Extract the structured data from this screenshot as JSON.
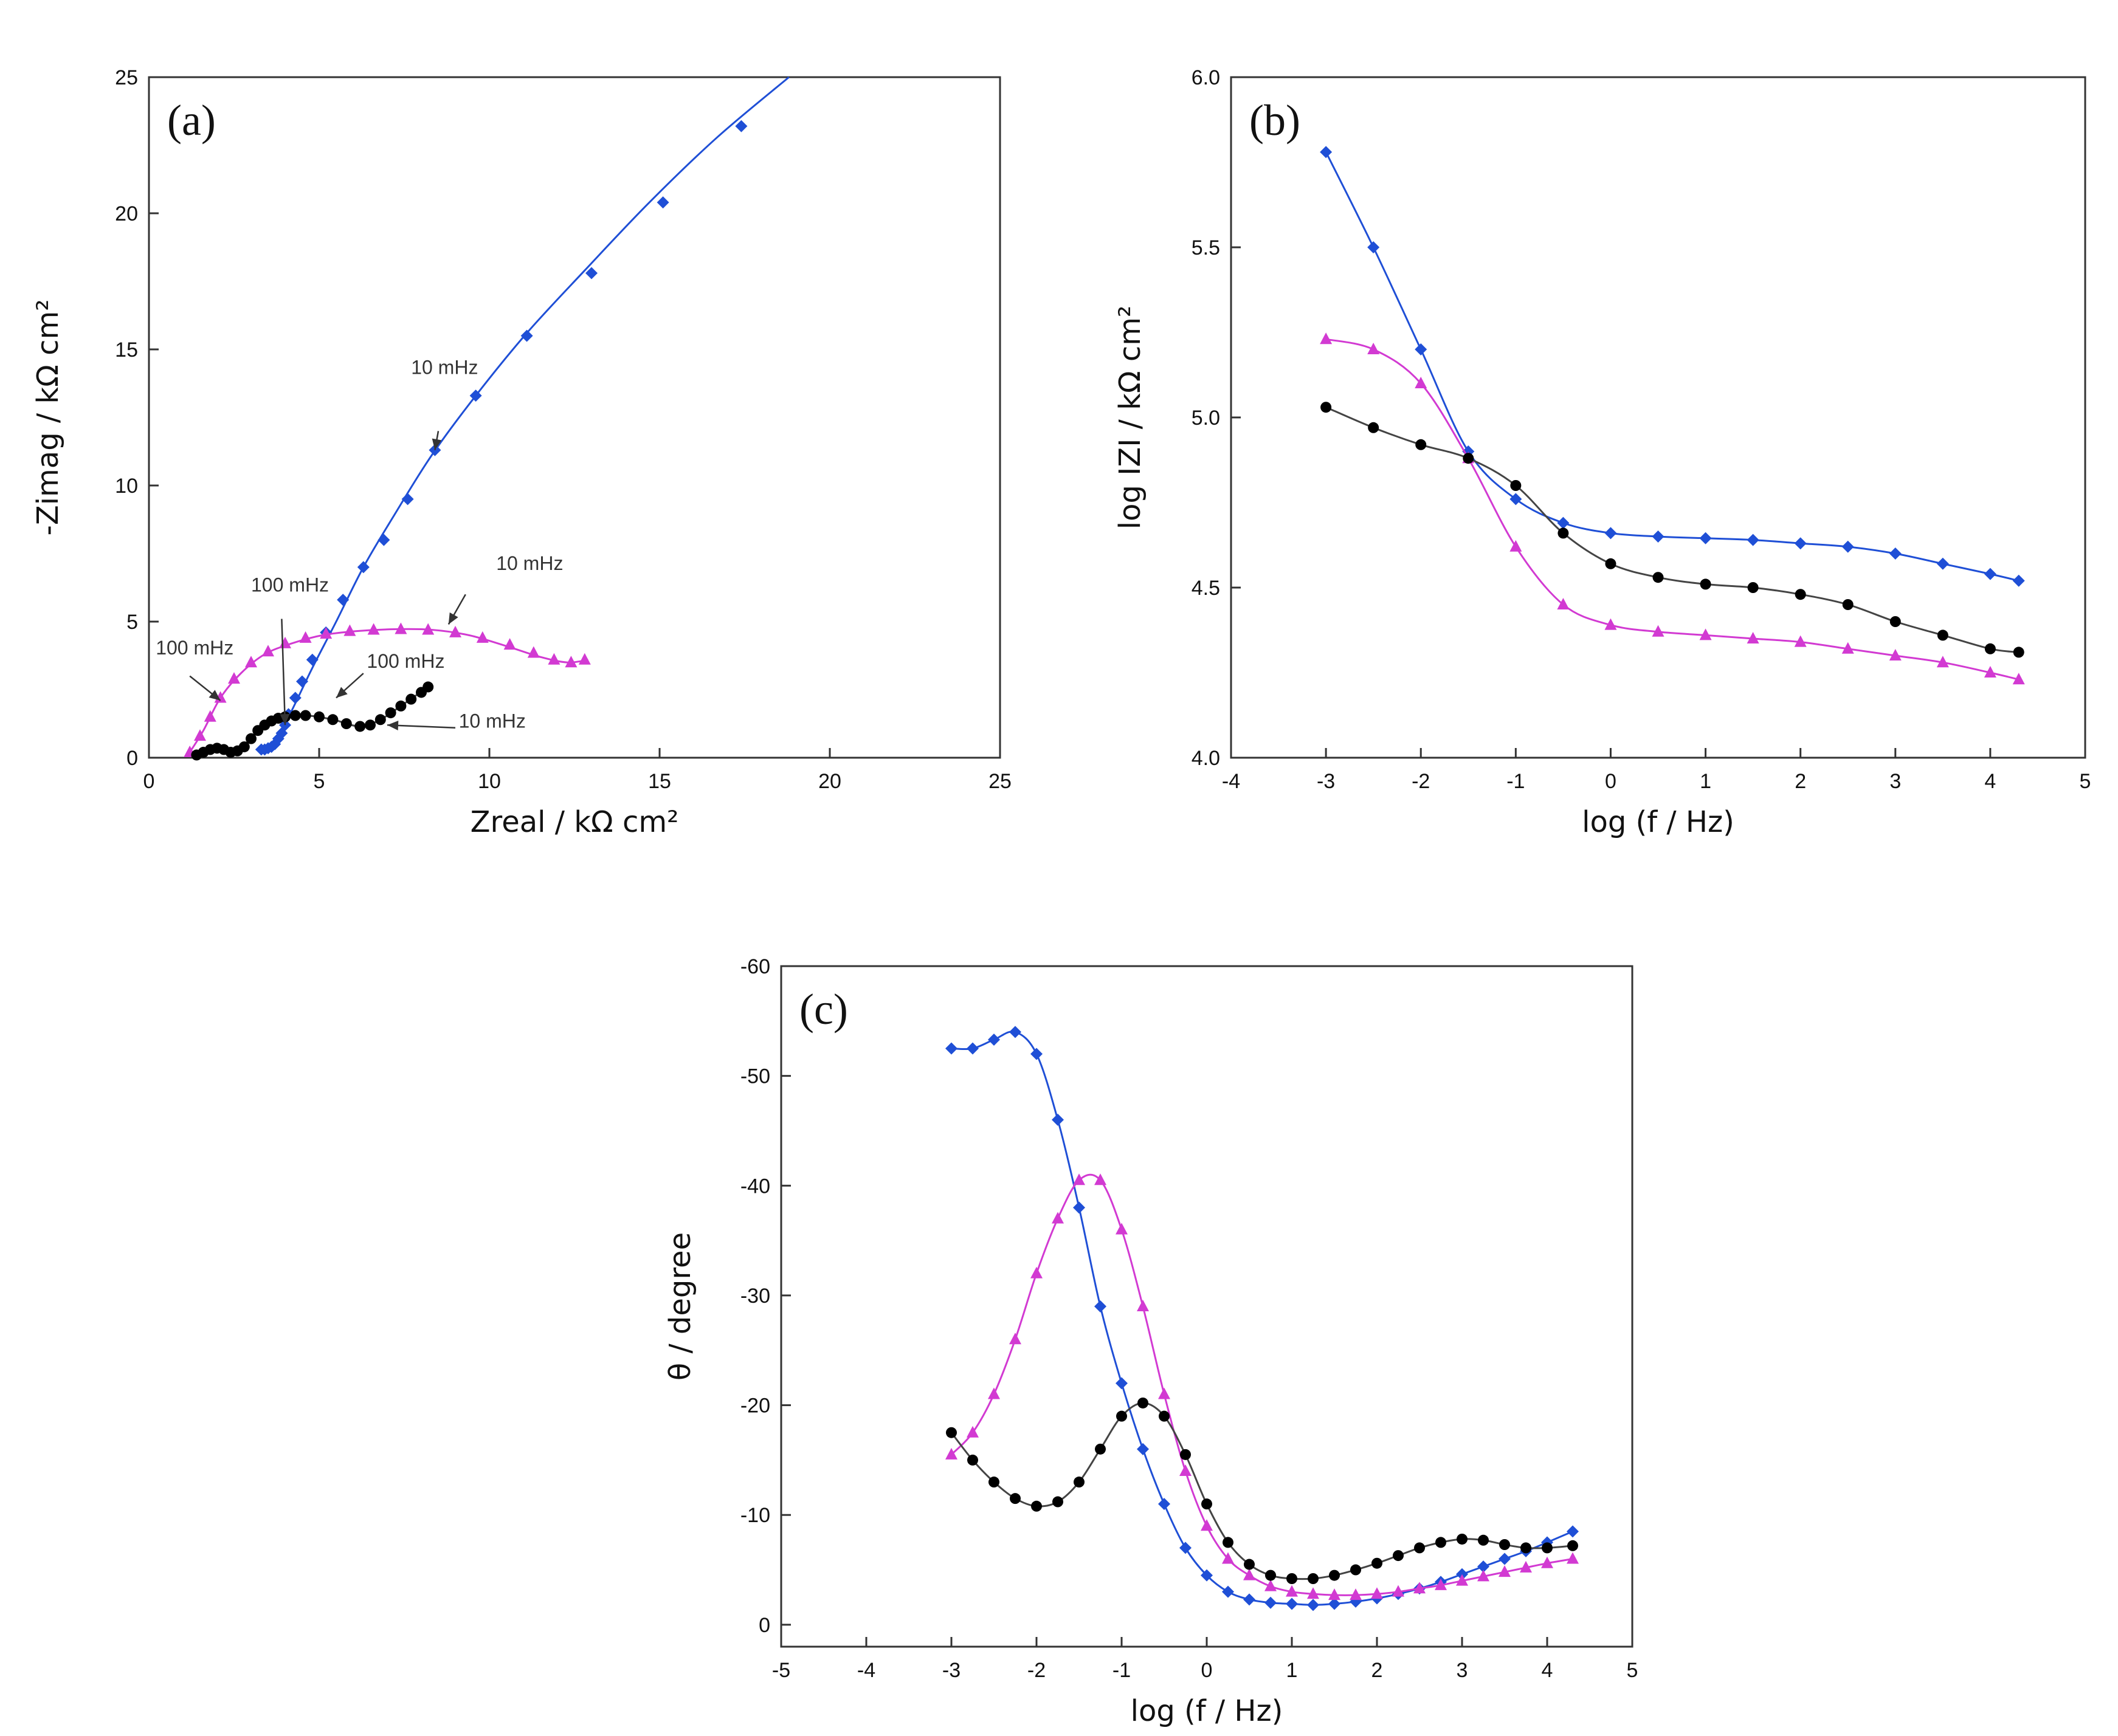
{
  "chart_data": [
    {
      "panel": "(a)",
      "type": "scatter",
      "xlabel": "Zreal / kΩ cm²",
      "ylabel": "-Zimag / kΩ cm²",
      "xlim": [
        0,
        25
      ],
      "ylim": [
        0,
        25
      ],
      "xticks": [
        "0",
        "5",
        "10",
        "15",
        "20",
        "25"
      ],
      "yticks": [
        "0",
        "5",
        "10",
        "15",
        "20",
        "25"
      ],
      "grid": false,
      "series": [
        {
          "color": "#1f4fd6",
          "marker": "diamond",
          "x": [
            3.3,
            3.4,
            3.5,
            3.6,
            3.7,
            3.8,
            3.9,
            4.0,
            4.1,
            4.3,
            4.5,
            4.8,
            5.2,
            5.7,
            6.3,
            6.9,
            7.6,
            8.4,
            9.6,
            11.1,
            13.0,
            15.1,
            17.4
          ],
          "y": [
            0.3,
            0.3,
            0.35,
            0.4,
            0.5,
            0.7,
            0.9,
            1.2,
            1.6,
            2.2,
            2.8,
            3.6,
            4.6,
            5.8,
            7.0,
            8.0,
            9.5,
            11.3,
            13.3,
            15.5,
            17.8,
            20.4,
            23.2
          ],
          "fit_x": [
            3.3,
            3.6,
            3.9,
            4.3,
            4.8,
            5.5,
            6.3,
            7.2,
            8.3,
            9.6,
            11.1,
            12.8,
            14.7,
            16.7,
            18.8
          ],
          "fit_y": [
            0.3,
            0.5,
            1.0,
            2.0,
            3.3,
            5.0,
            7.0,
            8.9,
            11.1,
            13.3,
            15.6,
            17.9,
            20.4,
            22.8,
            25.0
          ]
        },
        {
          "color": "#d23ad2",
          "marker": "triangle",
          "x": [
            1.2,
            1.5,
            1.8,
            2.1,
            2.5,
            3.0,
            3.5,
            4.0,
            4.6,
            5.2,
            5.9,
            6.6,
            7.4,
            8.2,
            9.0,
            9.8,
            10.6,
            11.3,
            11.9,
            12.4,
            12.8
          ],
          "y": [
            0.2,
            0.8,
            1.5,
            2.2,
            2.9,
            3.5,
            3.9,
            4.2,
            4.4,
            4.55,
            4.65,
            4.7,
            4.72,
            4.7,
            4.6,
            4.4,
            4.15,
            3.85,
            3.6,
            3.5,
            3.6
          ],
          "fit_x": [
            1.2,
            1.6,
            2.1,
            2.7,
            3.4,
            4.2,
            5.1,
            6.1,
            7.2,
            8.3,
            9.4,
            10.5,
            11.5,
            12.3,
            12.9
          ],
          "fit_y": [
            0.2,
            1.0,
            2.2,
            3.1,
            3.8,
            4.2,
            4.5,
            4.65,
            4.72,
            4.7,
            4.5,
            4.1,
            3.7,
            3.5,
            3.6
          ]
        },
        {
          "color": "#000000",
          "marker": "circle",
          "x": [
            1.4,
            1.6,
            1.8,
            2.0,
            2.2,
            2.4,
            2.6,
            2.8,
            3.0,
            3.2,
            3.4,
            3.6,
            3.8,
            4.0,
            4.3,
            4.6,
            5.0,
            5.4,
            5.8,
            6.2,
            6.5,
            6.8,
            7.1,
            7.4,
            7.7,
            8.0,
            8.2
          ],
          "y": [
            0.1,
            0.2,
            0.3,
            0.35,
            0.3,
            0.2,
            0.25,
            0.4,
            0.7,
            1.0,
            1.2,
            1.35,
            1.45,
            1.5,
            1.55,
            1.55,
            1.5,
            1.4,
            1.25,
            1.15,
            1.2,
            1.4,
            1.65,
            1.9,
            2.15,
            2.4,
            2.6
          ],
          "fit_x": [
            1.4,
            2.0,
            2.6,
            3.2,
            3.8,
            4.6,
            5.4,
            6.2,
            6.8,
            7.4,
            8.2
          ],
          "fit_y": [
            0.1,
            0.35,
            0.25,
            1.0,
            1.45,
            1.55,
            1.4,
            1.15,
            1.4,
            1.9,
            2.6
          ]
        }
      ],
      "annotations": [
        {
          "text": "10 mHz",
          "x": 7.7,
          "y": 14.1,
          "ax": 8.5,
          "ay": 12.0,
          "tx": 8.4,
          "ty": 11.3
        },
        {
          "text": "10 mHz",
          "x": 10.2,
          "y": 6.9,
          "ax": 9.3,
          "ay": 6.0,
          "tx": 8.8,
          "ty": 4.9
        },
        {
          "text": "100 mHz",
          "x": 3.0,
          "y": 6.1,
          "ax": 3.9,
          "ay": 5.1,
          "tx": 4.0,
          "ty": 1.2
        },
        {
          "text": "100 mHz",
          "x": 0.2,
          "y": 3.8,
          "ax": 1.2,
          "ay": 3.0,
          "tx": 2.1,
          "ty": 2.1
        },
        {
          "text": "100 mHz",
          "x": 6.4,
          "y": 3.3,
          "ax": 6.3,
          "ay": 3.1,
          "tx": 5.5,
          "ty": 2.2
        },
        {
          "text": "10 mHz",
          "x": 9.1,
          "y": 1.1,
          "ax": 9.0,
          "ay": 1.1,
          "tx": 7.0,
          "ty": 1.2
        }
      ]
    },
    {
      "panel": "(b)",
      "type": "scatter",
      "xlabel": "log (f / Hz)",
      "ylabel": "log IZI / kΩ cm²",
      "xlim": [
        -4,
        5
      ],
      "ylim": [
        4.0,
        6.0
      ],
      "xticks": [
        "-4",
        "-3",
        "-2",
        "-1",
        "0",
        "1",
        "2",
        "3",
        "4",
        "5"
      ],
      "yticks": [
        "4.0",
        "4.5",
        "5.0",
        "5.5",
        "6.0"
      ],
      "grid": false,
      "series": [
        {
          "color": "#1f4fd6",
          "marker": "diamond",
          "x": [
            -3,
            -2.5,
            -2,
            -1.5,
            -1,
            -0.5,
            0,
            0.5,
            1,
            1.5,
            2,
            2.5,
            3,
            3.5,
            4,
            4.3
          ],
          "y": [
            5.78,
            5.5,
            5.2,
            4.9,
            4.76,
            4.69,
            4.66,
            4.65,
            4.645,
            4.64,
            4.63,
            4.62,
            4.6,
            4.57,
            4.54,
            4.52
          ]
        },
        {
          "color": "#d23ad2",
          "marker": "triangle",
          "x": [
            -3,
            -2.5,
            -2,
            -1.5,
            -1,
            -0.5,
            0,
            0.5,
            1,
            1.5,
            2,
            2.5,
            3,
            3.5,
            4,
            4.3
          ],
          "y": [
            5.23,
            5.2,
            5.1,
            4.88,
            4.62,
            4.45,
            4.39,
            4.37,
            4.36,
            4.35,
            4.34,
            4.32,
            4.3,
            4.28,
            4.25,
            4.23
          ]
        },
        {
          "color": "#000000",
          "marker": "circle",
          "x": [
            -3,
            -2.5,
            -2,
            -1.5,
            -1,
            -0.5,
            0,
            0.5,
            1,
            1.5,
            2,
            2.5,
            3,
            3.5,
            4,
            4.3
          ],
          "y": [
            5.03,
            4.97,
            4.92,
            4.88,
            4.8,
            4.66,
            4.57,
            4.53,
            4.51,
            4.5,
            4.48,
            4.45,
            4.4,
            4.36,
            4.32,
            4.31
          ]
        }
      ]
    },
    {
      "panel": "(c)",
      "type": "scatter",
      "xlabel": "log (f / Hz)",
      "ylabel": "θ / degree",
      "xlim": [
        -5,
        5
      ],
      "ylim": [
        2,
        -60
      ],
      "xticks": [
        "-5",
        "-4",
        "-3",
        "-2",
        "-1",
        "0",
        "1",
        "2",
        "3",
        "4",
        "5"
      ],
      "yticks": [
        "-60",
        "-50",
        "-40",
        "-30",
        "-20",
        "-10",
        "0"
      ],
      "grid": false,
      "series": [
        {
          "color": "#1f4fd6",
          "marker": "diamond",
          "x": [
            -3,
            -2.75,
            -2.5,
            -2.25,
            -2,
            -1.75,
            -1.5,
            -1.25,
            -1,
            -0.75,
            -0.5,
            -0.25,
            0,
            0.25,
            0.5,
            0.75,
            1,
            1.25,
            1.5,
            1.75,
            2,
            2.25,
            2.5,
            2.75,
            3,
            3.25,
            3.5,
            3.75,
            4,
            4.3
          ],
          "y": [
            -52.5,
            -52.5,
            -53.3,
            -54,
            -52,
            -46,
            -38,
            -29,
            -22,
            -16,
            -11,
            -7,
            -4.5,
            -3,
            -2.3,
            -2,
            -1.9,
            -1.8,
            -1.9,
            -2.1,
            -2.4,
            -2.8,
            -3.3,
            -3.9,
            -4.6,
            -5.3,
            -6,
            -6.7,
            -7.5,
            -8.5
          ]
        },
        {
          "color": "#d23ad2",
          "marker": "triangle",
          "x": [
            -3,
            -2.75,
            -2.5,
            -2.25,
            -2,
            -1.75,
            -1.5,
            -1.25,
            -1,
            -0.75,
            -0.5,
            -0.25,
            0,
            0.25,
            0.5,
            0.75,
            1,
            1.25,
            1.5,
            1.75,
            2,
            2.25,
            2.5,
            2.75,
            3,
            3.25,
            3.5,
            3.75,
            4,
            4.3
          ],
          "y": [
            -15.5,
            -17.5,
            -21,
            -26,
            -32,
            -37,
            -40.5,
            -40.5,
            -36,
            -29,
            -21,
            -14,
            -9,
            -6,
            -4.5,
            -3.5,
            -3,
            -2.8,
            -2.7,
            -2.7,
            -2.8,
            -3,
            -3.3,
            -3.6,
            -4,
            -4.4,
            -4.8,
            -5.2,
            -5.6,
            -6
          ]
        },
        {
          "color": "#000000",
          "marker": "circle",
          "x": [
            -3,
            -2.75,
            -2.5,
            -2.25,
            -2,
            -1.75,
            -1.5,
            -1.25,
            -1,
            -0.75,
            -0.5,
            -0.25,
            0,
            0.25,
            0.5,
            0.75,
            1,
            1.25,
            1.5,
            1.75,
            2,
            2.25,
            2.5,
            2.75,
            3,
            3.25,
            3.5,
            3.75,
            4,
            4.3
          ],
          "y": [
            -17.5,
            -15,
            -13,
            -11.5,
            -10.8,
            -11.2,
            -13,
            -16,
            -19,
            -20.2,
            -19,
            -15.5,
            -11,
            -7.5,
            -5.5,
            -4.5,
            -4.2,
            -4.2,
            -4.5,
            -5,
            -5.6,
            -6.3,
            -7,
            -7.5,
            -7.8,
            -7.7,
            -7.3,
            -7,
            -7,
            -7.2
          ]
        }
      ]
    }
  ]
}
